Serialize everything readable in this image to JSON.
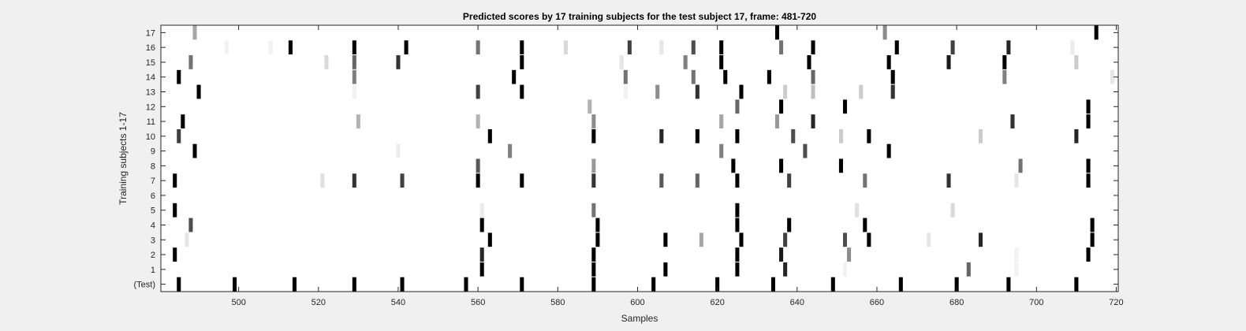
{
  "chart_data": {
    "type": "heatmap",
    "title": "Predicted scores by 17 training subjects for the test subject 17, frame: 481-720",
    "xlabel": "Samples",
    "ylabel": "Training subjects 1-17",
    "xlim": [
      481,
      720
    ],
    "xticks": [
      500,
      520,
      540,
      560,
      580,
      600,
      620,
      640,
      660,
      680,
      700,
      720
    ],
    "rows": [
      "(Test)",
      "1",
      "2",
      "3",
      "4",
      "5",
      "6",
      "7",
      "8",
      "9",
      "10",
      "11",
      "12",
      "13",
      "14",
      "15",
      "16",
      "17"
    ],
    "value_scale": "0 = white, 1 = black",
    "cells": [
      {
        "row": "(Test)",
        "points": [
          [
            485,
            1
          ],
          [
            499,
            1
          ],
          [
            514,
            1
          ],
          [
            529,
            1
          ],
          [
            541,
            1
          ],
          [
            557,
            1
          ],
          [
            571,
            1
          ],
          [
            589,
            1
          ],
          [
            604,
            1
          ],
          [
            620,
            1
          ],
          [
            634,
            1
          ],
          [
            649,
            1
          ],
          [
            666,
            1
          ],
          [
            680,
            1
          ],
          [
            693,
            1
          ],
          [
            710,
            1
          ]
        ]
      },
      {
        "row": "1",
        "points": [
          [
            561,
            1
          ],
          [
            589,
            1
          ],
          [
            607,
            1
          ],
          [
            625,
            1
          ],
          [
            637,
            0.85
          ],
          [
            652,
            0.05
          ],
          [
            683,
            0.6
          ],
          [
            695,
            0.05
          ]
        ]
      },
      {
        "row": "2",
        "points": [
          [
            484,
            1
          ],
          [
            561,
            0.85
          ],
          [
            589,
            1
          ],
          [
            625,
            1
          ],
          [
            636,
            0.9
          ],
          [
            653,
            0.45
          ],
          [
            695,
            0.05
          ],
          [
            713,
            1
          ]
        ]
      },
      {
        "row": "3",
        "points": [
          [
            487,
            0.1
          ],
          [
            563,
            1
          ],
          [
            590,
            1
          ],
          [
            607,
            1
          ],
          [
            616,
            0.35
          ],
          [
            626,
            1
          ],
          [
            637,
            0.75
          ],
          [
            652,
            0.7
          ],
          [
            658,
            1
          ],
          [
            673,
            0.1
          ],
          [
            686,
            0.85
          ],
          [
            714,
            1
          ]
        ]
      },
      {
        "row": "4",
        "points": [
          [
            488,
            0.7
          ],
          [
            561,
            1
          ],
          [
            590,
            1
          ],
          [
            625,
            1
          ],
          [
            638,
            1
          ],
          [
            657,
            1
          ],
          [
            714,
            1
          ]
        ]
      },
      {
        "row": "5",
        "points": [
          [
            484,
            1
          ],
          [
            561,
            0.08
          ],
          [
            589,
            0.55
          ],
          [
            625,
            1
          ],
          [
            655,
            0.12
          ],
          [
            679,
            0.15
          ]
        ]
      },
      {
        "row": "6",
        "points": []
      },
      {
        "row": "7",
        "points": [
          [
            484,
            1
          ],
          [
            521,
            0.12
          ],
          [
            529,
            0.8
          ],
          [
            541,
            0.75
          ],
          [
            560,
            1
          ],
          [
            571,
            1
          ],
          [
            589,
            0.8
          ],
          [
            606,
            0.65
          ],
          [
            615,
            0.6
          ],
          [
            625,
            1
          ],
          [
            638,
            0.75
          ],
          [
            657,
            0.55
          ],
          [
            678,
            0.8
          ],
          [
            695,
            0.1
          ],
          [
            713,
            1
          ]
        ]
      },
      {
        "row": "8",
        "points": [
          [
            560,
            0.65
          ],
          [
            589,
            0.4
          ],
          [
            624,
            1
          ],
          [
            636,
            1
          ],
          [
            651,
            1
          ],
          [
            696,
            0.55
          ],
          [
            713,
            1
          ]
        ]
      },
      {
        "row": "9",
        "points": [
          [
            489,
            1
          ],
          [
            540,
            0.08
          ],
          [
            568,
            0.5
          ],
          [
            621,
            0.5
          ],
          [
            642,
            0.7
          ],
          [
            663,
            1
          ]
        ]
      },
      {
        "row": "10",
        "points": [
          [
            485,
            0.75
          ],
          [
            563,
            1
          ],
          [
            589,
            1
          ],
          [
            606,
            0.85
          ],
          [
            615,
            1
          ],
          [
            625,
            1
          ],
          [
            639,
            0.7
          ],
          [
            651,
            0.2
          ],
          [
            658,
            1
          ],
          [
            686,
            0.2
          ],
          [
            710,
            0.85
          ]
        ]
      },
      {
        "row": "11",
        "points": [
          [
            486,
            1
          ],
          [
            530,
            0.3
          ],
          [
            560,
            0.3
          ],
          [
            589,
            0.45
          ],
          [
            621,
            0.35
          ],
          [
            635,
            0.4
          ],
          [
            644,
            0.85
          ],
          [
            694,
            0.8
          ],
          [
            713,
            1
          ]
        ]
      },
      {
        "row": "12",
        "points": [
          [
            588,
            0.3
          ],
          [
            625,
            0.6
          ],
          [
            636,
            1
          ],
          [
            652,
            1
          ],
          [
            713,
            1
          ]
        ]
      },
      {
        "row": "13",
        "points": [
          [
            490,
            1
          ],
          [
            529,
            0.05
          ],
          [
            560,
            0.75
          ],
          [
            571,
            1
          ],
          [
            597,
            0.05
          ],
          [
            605,
            0.45
          ],
          [
            615,
            0.8
          ],
          [
            626,
            1
          ],
          [
            637,
            0.2
          ],
          [
            644,
            0.25
          ],
          [
            656,
            0.2
          ],
          [
            664,
            0.8
          ]
        ]
      },
      {
        "row": "14",
        "points": [
          [
            485,
            1
          ],
          [
            529,
            0.5
          ],
          [
            569,
            1
          ],
          [
            597,
            0.55
          ],
          [
            614,
            0.55
          ],
          [
            622,
            1
          ],
          [
            633,
            1
          ],
          [
            644,
            0.6
          ],
          [
            664,
            1
          ],
          [
            692,
            0.5
          ],
          [
            719,
            0.1
          ]
        ]
      },
      {
        "row": "15",
        "points": [
          [
            488,
            0.55
          ],
          [
            522,
            0.15
          ],
          [
            529,
            0.6
          ],
          [
            540,
            0.8
          ],
          [
            571,
            1
          ],
          [
            596,
            0.1
          ],
          [
            612,
            0.5
          ],
          [
            621,
            1
          ],
          [
            643,
            1
          ],
          [
            663,
            1
          ],
          [
            678,
            0.9
          ],
          [
            692,
            1
          ],
          [
            710,
            0.2
          ]
        ]
      },
      {
        "row": "16",
        "points": [
          [
            497,
            0.05
          ],
          [
            508,
            0.05
          ],
          [
            513,
            1
          ],
          [
            529,
            1
          ],
          [
            542,
            1
          ],
          [
            560,
            0.55
          ],
          [
            571,
            1
          ],
          [
            582,
            0.15
          ],
          [
            598,
            0.75
          ],
          [
            606,
            0.1
          ],
          [
            614,
            0.7
          ],
          [
            621,
            1
          ],
          [
            636,
            0.55
          ],
          [
            644,
            1
          ],
          [
            665,
            1
          ],
          [
            679,
            0.75
          ],
          [
            693,
            0.85
          ],
          [
            709,
            0.08
          ]
        ]
      },
      {
        "row": "17",
        "points": [
          [
            489,
            0.35
          ],
          [
            635,
            1
          ],
          [
            662,
            0.45
          ],
          [
            715,
            1
          ]
        ]
      }
    ]
  }
}
